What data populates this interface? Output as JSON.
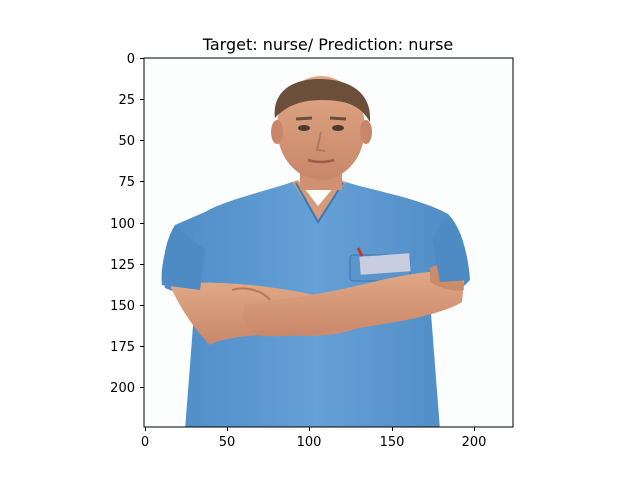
{
  "title": "Target: nurse/ Prediction: nurse",
  "image": {
    "subject": "man in light blue nursing scrubs with arms crossed",
    "colors": {
      "background": "#fcfdfd",
      "scrubs": "#5b97cf",
      "scrubs_shadow": "#3f78b2",
      "skin": "#d79a7a",
      "hair": "#6b4f3a",
      "badge": "#c9cde0"
    }
  },
  "axes": {
    "x_ticks": [
      "0",
      "50",
      "100",
      "150",
      "200"
    ],
    "y_ticks": [
      "0",
      "25",
      "50",
      "75",
      "100",
      "125",
      "150",
      "175",
      "200"
    ],
    "xlim": [
      0,
      224
    ],
    "ylim": [
      224,
      0
    ]
  }
}
